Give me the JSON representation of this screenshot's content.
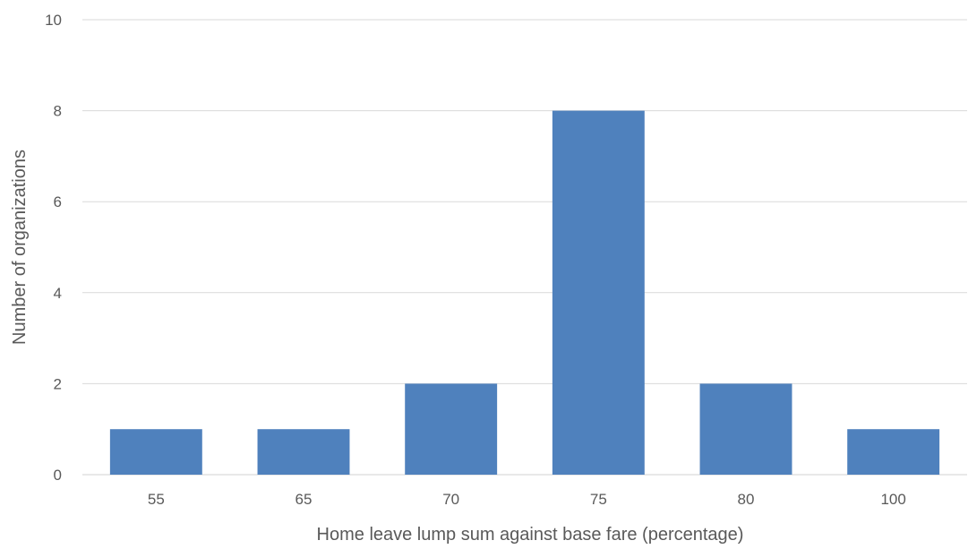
{
  "chart_data": {
    "type": "bar",
    "categories": [
      "55",
      "65",
      "70",
      "75",
      "80",
      "100"
    ],
    "values": [
      1,
      1,
      2,
      8,
      2,
      1
    ],
    "title": "",
    "xlabel": "Home leave lump sum against base fare (percentage)",
    "ylabel": "Number of organizations",
    "ylim": [
      0,
      10
    ],
    "yticks": [
      0,
      2,
      4,
      6,
      8,
      10
    ],
    "grid": true,
    "bar_color": "#4f81bd",
    "grid_color": "#d9d9d9",
    "text_color": "#595959"
  }
}
